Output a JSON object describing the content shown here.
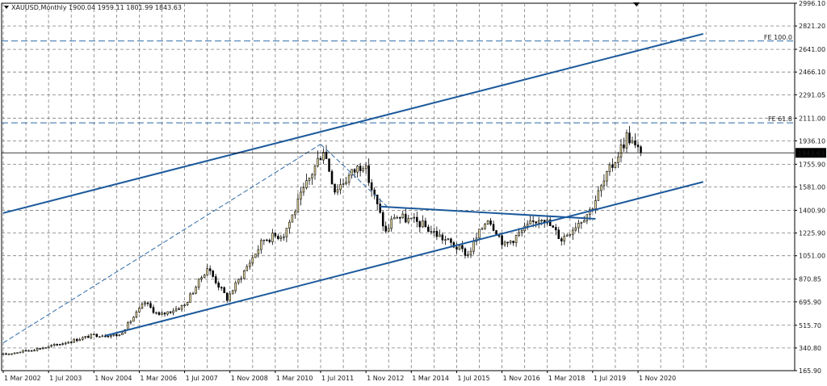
{
  "header": {
    "collapse_icon": "triangle-down-icon",
    "symbol": "XAUUSD,Monthly",
    "open": "1900.04",
    "high": "1959.11",
    "low": "1801.99",
    "close": "1843.63"
  },
  "marker_icon": "triangle-down-icon",
  "colors": {
    "grid": "#7f7f7f",
    "candle_body_bull": "#f5e6a8",
    "candle": "#000000",
    "trendline": "#1c5a9c",
    "fib_level": "#2f6aa8",
    "price_line": "#000000",
    "price_label_bg": "#000000",
    "price_label_text": "#ffffff"
  },
  "chart_data": {
    "type": "candlestick",
    "y_axis": {
      "ticks": [
        "2996.10",
        "2821.20",
        "2641.00",
        "2466.10",
        "2291.05",
        "2111.00",
        "1936.10",
        "1755.90",
        "1581.00",
        "1400.90",
        "1225.90",
        "1051.00",
        "870.85",
        "695.90",
        "515.70",
        "340.80",
        "165.90"
      ],
      "range": [
        165.9,
        2996.1
      ]
    },
    "x_axis": {
      "ticks": [
        "1 Mar 2002",
        "1 Jul 2003",
        "1 Nov 2004",
        "1 Mar 2006",
        "1 Jul 2007",
        "1 Nov 2008",
        "1 Mar 2010",
        "1 Jul 2011",
        "1 Nov 2012",
        "1 Mar 2014",
        "1 Jul 2015",
        "1 Nov 2016",
        "1 Mar 2018",
        "1 Jul 2019",
        "1 Nov 2020"
      ]
    },
    "current_price": "1843.63",
    "levels": [
      {
        "label": "FE 100.0",
        "value": 2705
      },
      {
        "label": "FE 61.8",
        "value": 2075
      }
    ],
    "trendlines": [
      {
        "name": "upper-channel",
        "from": [
          "2002-03",
          1380
        ],
        "to": [
          "2022-10",
          2760
        ]
      },
      {
        "name": "lower-channel",
        "from": [
          "2005-03",
          435
        ],
        "to": [
          "2022-10",
          1620
        ]
      },
      {
        "name": "triangle-top",
        "from": [
          "2013-04",
          1430
        ],
        "to": [
          "2019-08",
          1335
        ]
      }
    ],
    "dashed_lines": [
      {
        "name": "projection-leg-1",
        "from": [
          "2002-03",
          380
        ],
        "to": [
          "2011-07",
          1910
        ]
      },
      {
        "name": "projection-leg-2",
        "from": [
          "2011-07",
          1910
        ],
        "to": [
          "2013-07",
          1420
        ]
      }
    ],
    "anchor_points": [
      [
        "2002-03",
        290
      ],
      [
        "2003-07",
        350
      ],
      [
        "2004-11",
        440
      ],
      [
        "2005-08",
        440
      ],
      [
        "2006-05",
        690
      ],
      [
        "2006-10",
        590
      ],
      [
        "2007-07",
        670
      ],
      [
        "2008-03",
        960
      ],
      [
        "2008-10",
        720
      ],
      [
        "2009-11",
        1180
      ],
      [
        "2010-06",
        1220
      ],
      [
        "2011-08",
        1880
      ],
      [
        "2011-12",
        1560
      ],
      [
        "2012-10",
        1770
      ],
      [
        "2013-06",
        1230
      ],
      [
        "2013-09",
        1360
      ],
      [
        "2014-06",
        1300
      ],
      [
        "2015-11",
        1060
      ],
      [
        "2016-06",
        1350
      ],
      [
        "2016-12",
        1130
      ],
      [
        "2018-01",
        1360
      ],
      [
        "2018-08",
        1180
      ],
      [
        "2019-06",
        1400
      ],
      [
        "2020-07",
        1970
      ],
      [
        "2020-08",
        1960
      ],
      [
        "2020-10",
        1880
      ],
      [
        "2020-12",
        1843.63
      ]
    ]
  }
}
